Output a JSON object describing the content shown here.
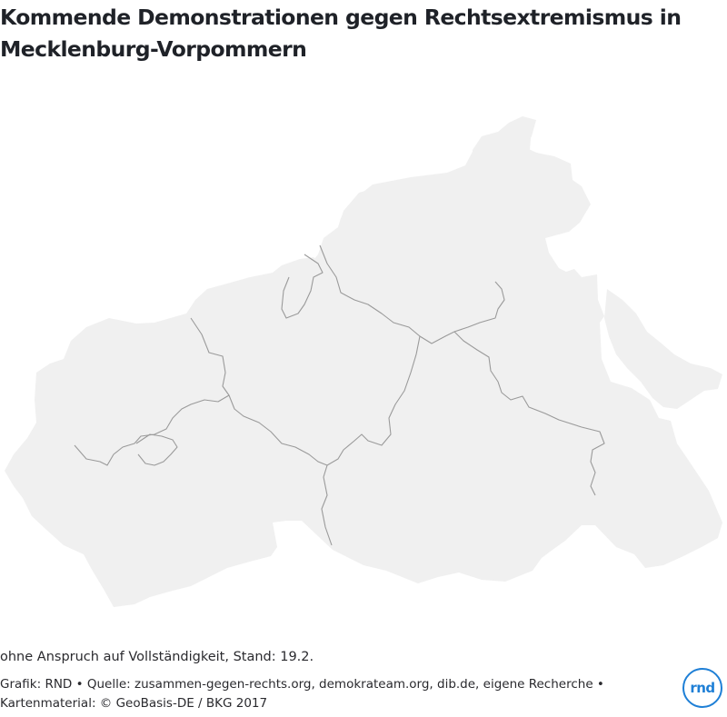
{
  "title": "Kommende Demonstrationen gegen Rechtsextremismus in Mecklenburg-Vorpommern",
  "note": "ohne Anspruch auf Vollständigkeit, Stand: 19.2.",
  "source_line1": "Grafik: RND • Quelle: zusammen-gegen-rechts.org, demokrateam.org, dib.de, eigene Recherche •",
  "source_line2": "Kartenmaterial: © GeoBasis-DE / BKG 2017",
  "logo_text": "rnd",
  "colors": {
    "land": "#f0f0f0",
    "border": "#9a9a9a",
    "logo": "#1e7fd6"
  }
}
